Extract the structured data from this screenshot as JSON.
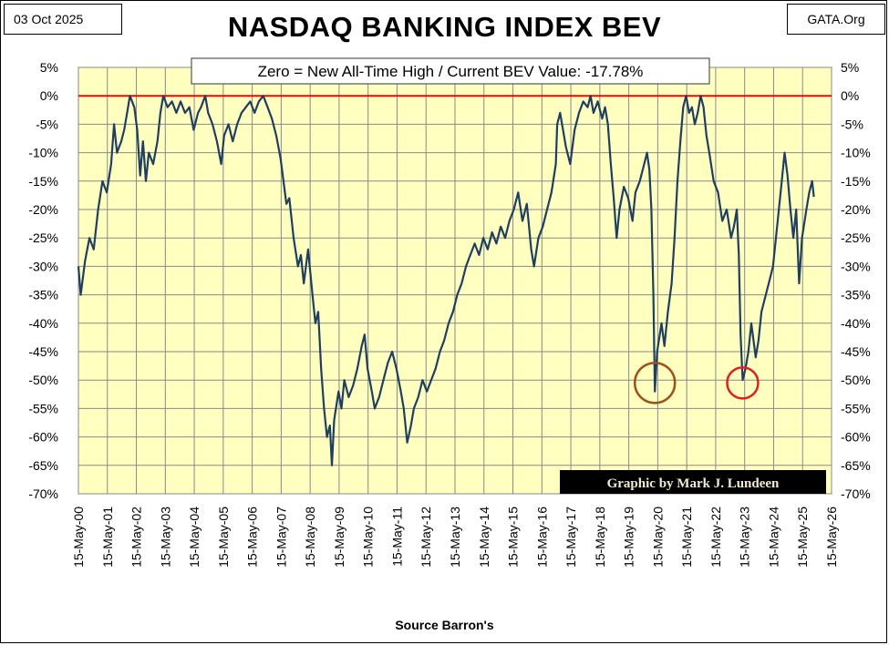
{
  "header": {
    "date": "03 Oct 2025",
    "site": "GATA.Org",
    "title": "NASDAQ BANKING INDEX BEV",
    "source": "Source Barron's"
  },
  "chart_data": {
    "type": "line",
    "title": "NASDAQ BANKING INDEX BEV",
    "subtitle": "Zero = New All-Time High / Current BEV Value:  -17.78%",
    "credit": "Graphic by Mark J. Lundeen",
    "ylim": [
      -70,
      5
    ],
    "y_ticks": [
      5,
      0,
      -5,
      -10,
      -15,
      -20,
      -25,
      -30,
      -35,
      -40,
      -45,
      -50,
      -55,
      -60,
      -65,
      -70
    ],
    "y_tick_labels": [
      "5%",
      "0%",
      "-5%",
      "-10%",
      "-15%",
      "-20%",
      "-25%",
      "-30%",
      "-35%",
      "-40%",
      "-45%",
      "-50%",
      "-55%",
      "-60%",
      "-65%",
      "-70%"
    ],
    "x_tick_labels": [
      "15-May-00",
      "15-May-01",
      "15-May-02",
      "15-May-03",
      "15-May-04",
      "15-May-05",
      "15-May-06",
      "15-May-07",
      "15-May-08",
      "15-May-09",
      "15-May-10",
      "15-May-11",
      "15-May-12",
      "15-May-13",
      "15-May-14",
      "15-May-15",
      "15-May-16",
      "15-May-17",
      "15-May-18",
      "15-May-19",
      "15-May-20",
      "15-May-21",
      "15-May-22",
      "15-May-23",
      "15-May-24",
      "15-May-25",
      "15-May-26"
    ],
    "xlim": [
      2000.37,
      2026.37
    ],
    "grid": true,
    "reference_line": {
      "y": 0,
      "color": "#ff0000"
    },
    "series": [
      {
        "color": "#1f3f5f",
        "points": [
          [
            2000.37,
            -30
          ],
          [
            2000.45,
            -35
          ],
          [
            2000.6,
            -29
          ],
          [
            2000.75,
            -25
          ],
          [
            2000.9,
            -27
          ],
          [
            2001.05,
            -20
          ],
          [
            2001.2,
            -15
          ],
          [
            2001.35,
            -17
          ],
          [
            2001.5,
            -12
          ],
          [
            2001.6,
            -5
          ],
          [
            2001.7,
            -10
          ],
          [
            2001.85,
            -8
          ],
          [
            2001.95,
            -6
          ],
          [
            2002.05,
            -3
          ],
          [
            2002.15,
            0
          ],
          [
            2002.3,
            -2
          ],
          [
            2002.4,
            -6
          ],
          [
            2002.5,
            -14
          ],
          [
            2002.6,
            -8
          ],
          [
            2002.7,
            -15
          ],
          [
            2002.8,
            -10
          ],
          [
            2002.95,
            -12
          ],
          [
            2003.1,
            -8
          ],
          [
            2003.2,
            -3
          ],
          [
            2003.3,
            0
          ],
          [
            2003.45,
            -2
          ],
          [
            2003.6,
            -1
          ],
          [
            2003.75,
            -3
          ],
          [
            2003.9,
            -1
          ],
          [
            2004.05,
            -3
          ],
          [
            2004.2,
            -2
          ],
          [
            2004.35,
            -6
          ],
          [
            2004.5,
            -3
          ],
          [
            2004.6,
            -2
          ],
          [
            2004.75,
            0
          ],
          [
            2004.85,
            -3
          ],
          [
            2005.0,
            -5
          ],
          [
            2005.15,
            -8
          ],
          [
            2005.3,
            -12
          ],
          [
            2005.4,
            -7
          ],
          [
            2005.55,
            -5
          ],
          [
            2005.7,
            -8
          ],
          [
            2005.85,
            -5
          ],
          [
            2006.0,
            -3
          ],
          [
            2006.15,
            -2
          ],
          [
            2006.3,
            -1
          ],
          [
            2006.45,
            -3
          ],
          [
            2006.6,
            -1
          ],
          [
            2006.75,
            0
          ],
          [
            2006.9,
            -2
          ],
          [
            2007.05,
            -4
          ],
          [
            2007.2,
            -7
          ],
          [
            2007.35,
            -11
          ],
          [
            2007.45,
            -15
          ],
          [
            2007.55,
            -19
          ],
          [
            2007.65,
            -18
          ],
          [
            2007.8,
            -25
          ],
          [
            2007.95,
            -30
          ],
          [
            2008.05,
            -28
          ],
          [
            2008.15,
            -33
          ],
          [
            2008.3,
            -27
          ],
          [
            2008.45,
            -35
          ],
          [
            2008.55,
            -40
          ],
          [
            2008.65,
            -38
          ],
          [
            2008.75,
            -48
          ],
          [
            2008.85,
            -55
          ],
          [
            2008.95,
            -60
          ],
          [
            2009.05,
            -58
          ],
          [
            2009.12,
            -65
          ],
          [
            2009.2,
            -57
          ],
          [
            2009.35,
            -52
          ],
          [
            2009.45,
            -55
          ],
          [
            2009.55,
            -50
          ],
          [
            2009.7,
            -53
          ],
          [
            2009.85,
            -51
          ],
          [
            2010.0,
            -48
          ],
          [
            2010.15,
            -44
          ],
          [
            2010.25,
            -42
          ],
          [
            2010.35,
            -48
          ],
          [
            2010.5,
            -52
          ],
          [
            2010.6,
            -55
          ],
          [
            2010.75,
            -53
          ],
          [
            2010.9,
            -50
          ],
          [
            2011.05,
            -47
          ],
          [
            2011.2,
            -45
          ],
          [
            2011.35,
            -48
          ],
          [
            2011.5,
            -52
          ],
          [
            2011.6,
            -55
          ],
          [
            2011.72,
            -61
          ],
          [
            2011.85,
            -58
          ],
          [
            2011.95,
            -55
          ],
          [
            2012.1,
            -53
          ],
          [
            2012.25,
            -50
          ],
          [
            2012.4,
            -52
          ],
          [
            2012.55,
            -50
          ],
          [
            2012.7,
            -48
          ],
          [
            2012.85,
            -45
          ],
          [
            2013.0,
            -43
          ],
          [
            2013.15,
            -40
          ],
          [
            2013.3,
            -38
          ],
          [
            2013.45,
            -35
          ],
          [
            2013.6,
            -33
          ],
          [
            2013.75,
            -30
          ],
          [
            2013.9,
            -28
          ],
          [
            2014.05,
            -26
          ],
          [
            2014.2,
            -28
          ],
          [
            2014.35,
            -25
          ],
          [
            2014.5,
            -27
          ],
          [
            2014.65,
            -24
          ],
          [
            2014.8,
            -26
          ],
          [
            2014.95,
            -23
          ],
          [
            2015.1,
            -25
          ],
          [
            2015.25,
            -22
          ],
          [
            2015.4,
            -20
          ],
          [
            2015.55,
            -17
          ],
          [
            2015.7,
            -22
          ],
          [
            2015.85,
            -19
          ],
          [
            2016.0,
            -27
          ],
          [
            2016.1,
            -30
          ],
          [
            2016.25,
            -25
          ],
          [
            2016.4,
            -23
          ],
          [
            2016.55,
            -20
          ],
          [
            2016.7,
            -17
          ],
          [
            2016.85,
            -12
          ],
          [
            2016.9,
            -5
          ],
          [
            2017.0,
            -3
          ],
          [
            2017.1,
            -6
          ],
          [
            2017.2,
            -9
          ],
          [
            2017.35,
            -12
          ],
          [
            2017.5,
            -6
          ],
          [
            2017.65,
            -3
          ],
          [
            2017.8,
            -1
          ],
          [
            2017.95,
            -2
          ],
          [
            2018.05,
            0
          ],
          [
            2018.15,
            -3
          ],
          [
            2018.3,
            -1
          ],
          [
            2018.45,
            -4
          ],
          [
            2018.55,
            -2
          ],
          [
            2018.65,
            -5
          ],
          [
            2018.75,
            -12
          ],
          [
            2018.85,
            -18
          ],
          [
            2018.95,
            -25
          ],
          [
            2019.05,
            -20
          ],
          [
            2019.2,
            -16
          ],
          [
            2019.35,
            -18
          ],
          [
            2019.5,
            -22
          ],
          [
            2019.6,
            -17
          ],
          [
            2019.75,
            -15
          ],
          [
            2019.9,
            -12
          ],
          [
            2020.0,
            -10
          ],
          [
            2020.08,
            -13
          ],
          [
            2020.15,
            -20
          ],
          [
            2020.22,
            -35
          ],
          [
            2020.27,
            -52
          ],
          [
            2020.35,
            -45
          ],
          [
            2020.5,
            -40
          ],
          [
            2020.6,
            -44
          ],
          [
            2020.72,
            -38
          ],
          [
            2020.85,
            -33
          ],
          [
            2020.95,
            -25
          ],
          [
            2021.05,
            -15
          ],
          [
            2021.15,
            -8
          ],
          [
            2021.25,
            -2
          ],
          [
            2021.35,
            0
          ],
          [
            2021.45,
            -3
          ],
          [
            2021.55,
            -2
          ],
          [
            2021.65,
            -5
          ],
          [
            2021.75,
            -3
          ],
          [
            2021.85,
            0
          ],
          [
            2021.95,
            -2
          ],
          [
            2022.05,
            -7
          ],
          [
            2022.15,
            -10
          ],
          [
            2022.3,
            -15
          ],
          [
            2022.45,
            -17
          ],
          [
            2022.6,
            -22
          ],
          [
            2022.75,
            -20
          ],
          [
            2022.9,
            -25
          ],
          [
            2023.0,
            -23
          ],
          [
            2023.1,
            -20
          ],
          [
            2023.17,
            -28
          ],
          [
            2023.23,
            -42
          ],
          [
            2023.3,
            -50
          ],
          [
            2023.4,
            -48
          ],
          [
            2023.5,
            -45
          ],
          [
            2023.6,
            -40
          ],
          [
            2023.75,
            -46
          ],
          [
            2023.85,
            -43
          ],
          [
            2023.95,
            -38
          ],
          [
            2024.05,
            -36
          ],
          [
            2024.2,
            -33
          ],
          [
            2024.35,
            -30
          ],
          [
            2024.45,
            -25
          ],
          [
            2024.55,
            -20
          ],
          [
            2024.65,
            -15
          ],
          [
            2024.75,
            -10
          ],
          [
            2024.85,
            -14
          ],
          [
            2024.95,
            -20
          ],
          [
            2025.05,
            -25
          ],
          [
            2025.15,
            -20
          ],
          [
            2025.25,
            -33
          ],
          [
            2025.35,
            -25
          ],
          [
            2025.5,
            -20
          ],
          [
            2025.6,
            -17
          ],
          [
            2025.7,
            -15
          ],
          [
            2025.76,
            -17.78
          ]
        ]
      }
    ],
    "annotations": [
      {
        "type": "circle",
        "x": 2020.27,
        "y": -50.5,
        "color": "#a0501a"
      },
      {
        "type": "circle",
        "x": 2023.3,
        "y": -50.5,
        "color": "#e02020"
      }
    ]
  }
}
